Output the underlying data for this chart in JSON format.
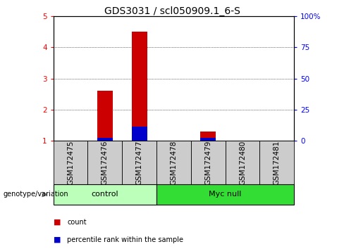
{
  "title": "GDS3031 / scl050909.1_6-S",
  "samples": [
    "GSM172475",
    "GSM172476",
    "GSM172477",
    "GSM172478",
    "GSM172479",
    "GSM172480",
    "GSM172481"
  ],
  "red_values": [
    1.0,
    2.6,
    4.5,
    1.0,
    1.3,
    1.0,
    1.0
  ],
  "blue_values": [
    1.0,
    1.08,
    1.45,
    1.0,
    1.08,
    1.0,
    1.0
  ],
  "ylim_left": [
    1,
    5
  ],
  "ylim_right": [
    0,
    100
  ],
  "yticks_left": [
    1,
    2,
    3,
    4,
    5
  ],
  "yticks_right": [
    0,
    25,
    50,
    75,
    100
  ],
  "ytick_labels_right": [
    "0",
    "25",
    "50",
    "75",
    "100%"
  ],
  "ytick_labels_left": [
    "1",
    "2",
    "3",
    "4",
    "5"
  ],
  "groups": [
    {
      "label": "control",
      "start": 0,
      "end": 3,
      "color": "#bbffbb"
    },
    {
      "label": "Myc null",
      "start": 3,
      "end": 7,
      "color": "#33dd33"
    }
  ],
  "red_color": "#cc0000",
  "blue_color": "#0000cc",
  "sample_bg": "#cccccc",
  "genotype_label": "genotype/variation",
  "legend_red": "count",
  "legend_blue": "percentile rank within the sample",
  "title_fontsize": 10,
  "tick_fontsize": 7.5,
  "label_fontsize": 8
}
